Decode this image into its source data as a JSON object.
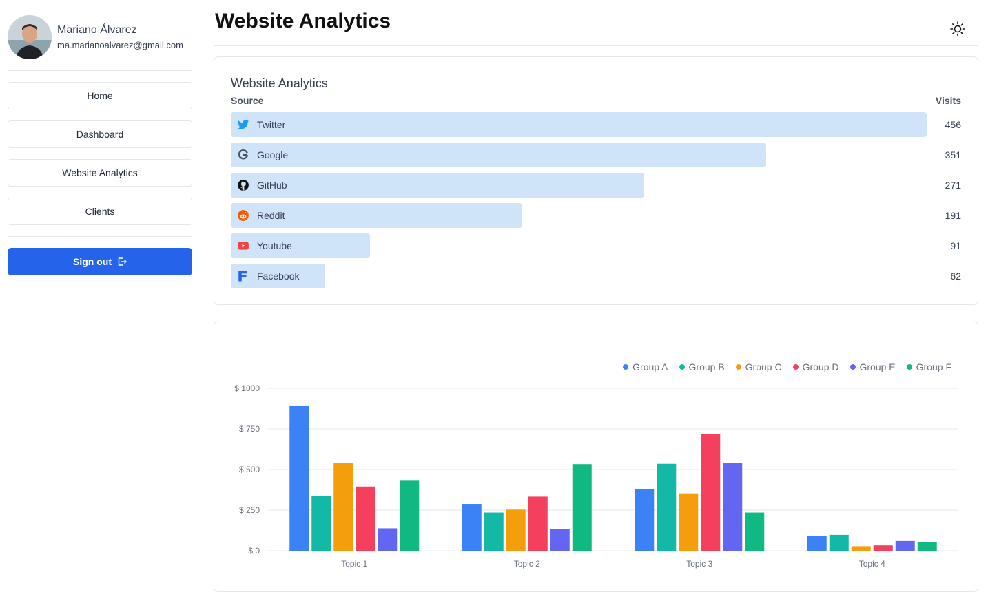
{
  "profile": {
    "name": "Mariano Álvarez",
    "email": "ma.marianoalvarez@gmail.com"
  },
  "nav": {
    "home": "Home",
    "dashboard": "Dashboard",
    "website_analytics": "Website Analytics",
    "clients": "Clients",
    "sign_out": "Sign out"
  },
  "header": {
    "title": "Website Analytics"
  },
  "analytics": {
    "title": "Website Analytics",
    "col_source": "Source",
    "col_visits": "Visits",
    "bar_color": "#cfe3f9",
    "rows": [
      {
        "label": "Twitter",
        "value": "456",
        "visits": 456,
        "icon": "twitter-icon"
      },
      {
        "label": "Google",
        "value": "351",
        "visits": 351,
        "icon": "google-icon"
      },
      {
        "label": "GitHub",
        "value": "271",
        "visits": 271,
        "icon": "github-icon"
      },
      {
        "label": "Reddit",
        "value": "191",
        "visits": 191,
        "icon": "reddit-icon"
      },
      {
        "label": "Youtube",
        "value": "91",
        "visits": 91,
        "icon": "youtube-icon"
      },
      {
        "label": "Facebook",
        "value": "62",
        "visits": 62,
        "icon": "facebook-icon"
      }
    ]
  },
  "chart_data": {
    "type": "bar",
    "categories": [
      "Topic 1",
      "Topic 2",
      "Topic 3",
      "Topic 4"
    ],
    "series": [
      {
        "name": "Group A",
        "color": "#3b82f6",
        "values": [
          890,
          288,
          380,
          90
        ]
      },
      {
        "name": "Group B",
        "color": "#14b8a6",
        "values": [
          338,
          235,
          535,
          98
        ]
      },
      {
        "name": "Group C",
        "color": "#f59e0b",
        "values": [
          538,
          253,
          353,
          28
        ]
      },
      {
        "name": "Group D",
        "color": "#f43f5e",
        "values": [
          395,
          333,
          718,
          33
        ]
      },
      {
        "name": "Group E",
        "color": "#6366f1",
        "values": [
          138,
          133,
          538,
          60
        ]
      },
      {
        "name": "Group F",
        "color": "#10b981",
        "values": [
          435,
          533,
          235,
          52
        ]
      }
    ],
    "yticks": [
      "$ 0",
      "$ 250",
      "$ 500",
      "$ 750",
      "$ 1000"
    ],
    "ylim": [
      0,
      1000
    ],
    "legend_position": "top-right",
    "grid": true
  }
}
